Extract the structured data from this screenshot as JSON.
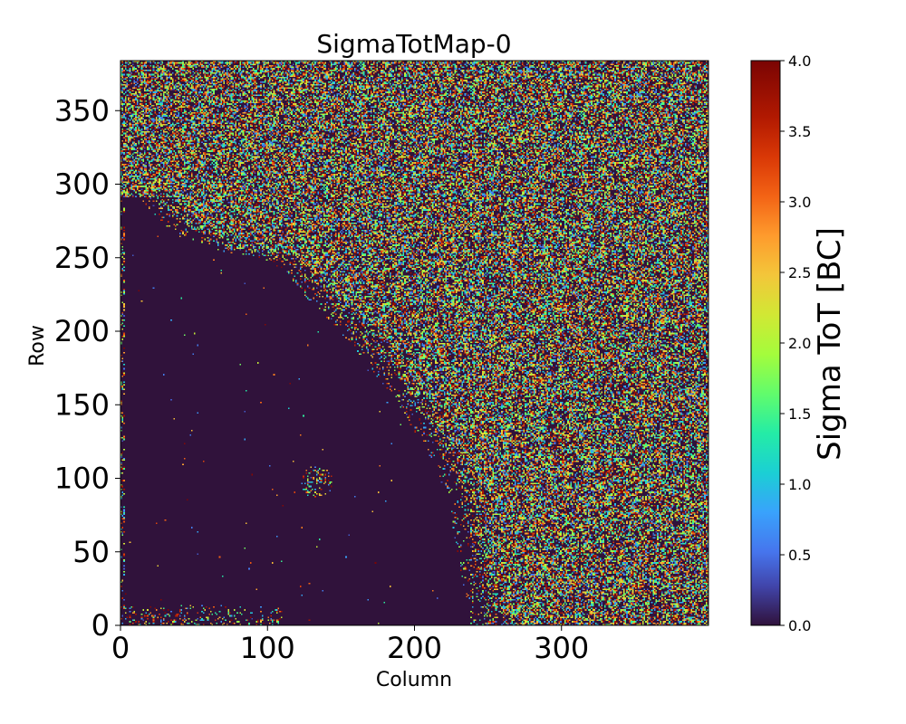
{
  "chart_data": {
    "type": "heatmap",
    "title": "SigmaTotMap-0",
    "xlabel": "Column",
    "ylabel": "Row",
    "xlim": [
      0,
      400
    ],
    "ylim": [
      0,
      384
    ],
    "x_ticks": [
      0,
      100,
      200,
      300
    ],
    "y_ticks": [
      0,
      50,
      100,
      150,
      200,
      250,
      300,
      350
    ],
    "x_tick_labels": [
      "0",
      "100",
      "200",
      "300"
    ],
    "y_tick_labels": [
      "0",
      "50",
      "100",
      "150",
      "200",
      "250",
      "300",
      "350"
    ],
    "colorbar": {
      "label": "Sigma ToT [BC]",
      "min": 0.0,
      "max": 4.0,
      "colormap": "turbo",
      "ticks": [
        0.0,
        0.5,
        1.0,
        1.5,
        2.0,
        2.5,
        3.0,
        3.5,
        4.0
      ],
      "tick_labels": [
        "0.0",
        "0.5",
        "1.0",
        "1.5",
        "2.0",
        "2.5",
        "3.0",
        "3.5",
        "4.0"
      ]
    },
    "background_value": 0.0,
    "regions": {
      "quiet_region_boundary": [
        [
          0,
          290
        ],
        [
          15,
          292
        ],
        [
          40,
          270
        ],
        [
          70,
          255
        ],
        [
          100,
          250
        ],
        [
          120,
          240
        ],
        [
          140,
          215
        ],
        [
          165,
          190
        ],
        [
          185,
          165
        ],
        [
          205,
          135
        ],
        [
          220,
          110
        ],
        [
          230,
          85
        ],
        [
          235,
          55
        ],
        [
          240,
          30
        ],
        [
          245,
          5
        ],
        [
          245,
          0
        ]
      ],
      "noisy_region_mean_fill_fraction": 0.55,
      "bottom_edge_band_rows": [
        0,
        15
      ],
      "cluster_center": [
        133,
        97
      ]
    }
  }
}
